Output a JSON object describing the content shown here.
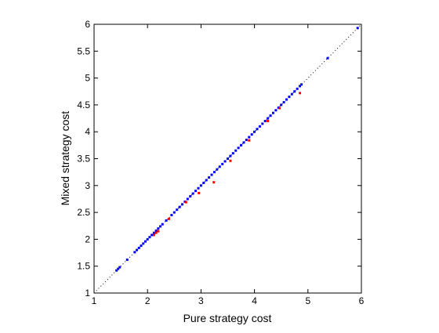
{
  "chart_data": {
    "type": "scatter",
    "title": "",
    "xlabel": "Pure strategy cost",
    "ylabel": "Mixed strategy cost",
    "xlim": [
      1,
      6
    ],
    "ylim": [
      1,
      6
    ],
    "xticks": [
      1,
      2,
      3,
      4,
      5,
      6
    ],
    "yticks": [
      1,
      1.5,
      2,
      2.5,
      3,
      3.5,
      4,
      4.5,
      5,
      5.5,
      6
    ],
    "grid": false,
    "legend": "none",
    "reference_line": {
      "style": "dotted",
      "color": "#000000",
      "from": [
        1,
        1
      ],
      "to": [
        6,
        6
      ]
    },
    "series": [
      {
        "color": "#0000ff",
        "x": [
          1.42,
          1.45,
          1.48,
          1.62,
          1.76,
          1.8,
          1.84,
          1.88,
          1.92,
          1.96,
          2.0,
          2.04,
          2.08,
          2.12,
          2.16,
          2.2,
          2.24,
          2.28,
          2.35,
          2.45,
          2.5,
          2.55,
          2.6,
          2.65,
          2.7,
          2.75,
          2.8,
          2.85,
          2.9,
          2.95,
          3.0,
          3.05,
          3.1,
          3.15,
          3.2,
          3.25,
          3.3,
          3.35,
          3.4,
          3.45,
          3.5,
          3.55,
          3.6,
          3.65,
          3.7,
          3.75,
          3.8,
          3.85,
          3.9,
          3.95,
          4.0,
          4.05,
          4.1,
          4.15,
          4.2,
          4.25,
          4.3,
          4.35,
          4.4,
          4.45,
          4.5,
          4.55,
          4.6,
          4.65,
          4.7,
          4.75,
          4.8,
          4.85,
          4.88,
          5.37,
          5.93
        ],
        "y": [
          1.42,
          1.45,
          1.48,
          1.62,
          1.76,
          1.8,
          1.84,
          1.88,
          1.92,
          1.96,
          2.0,
          2.04,
          2.08,
          2.12,
          2.16,
          2.2,
          2.24,
          2.28,
          2.35,
          2.45,
          2.5,
          2.55,
          2.6,
          2.65,
          2.7,
          2.75,
          2.8,
          2.85,
          2.9,
          2.95,
          3.0,
          3.05,
          3.1,
          3.15,
          3.2,
          3.25,
          3.3,
          3.35,
          3.4,
          3.45,
          3.5,
          3.55,
          3.6,
          3.65,
          3.7,
          3.75,
          3.8,
          3.85,
          3.9,
          3.95,
          4.0,
          4.05,
          4.1,
          4.15,
          4.2,
          4.25,
          4.3,
          4.35,
          4.4,
          4.45,
          4.5,
          4.55,
          4.6,
          4.65,
          4.7,
          4.75,
          4.8,
          4.85,
          4.88,
          5.37,
          5.93
        ]
      },
      {
        "color": "#ff0000",
        "x": [
          2.12,
          2.16,
          2.2,
          2.4,
          2.72,
          2.96,
          3.24,
          3.55,
          3.9,
          4.25,
          4.47,
          4.85
        ],
        "y": [
          2.08,
          2.12,
          2.15,
          2.38,
          2.69,
          2.86,
          3.06,
          3.46,
          3.84,
          4.2,
          4.44,
          4.72
        ]
      }
    ]
  }
}
